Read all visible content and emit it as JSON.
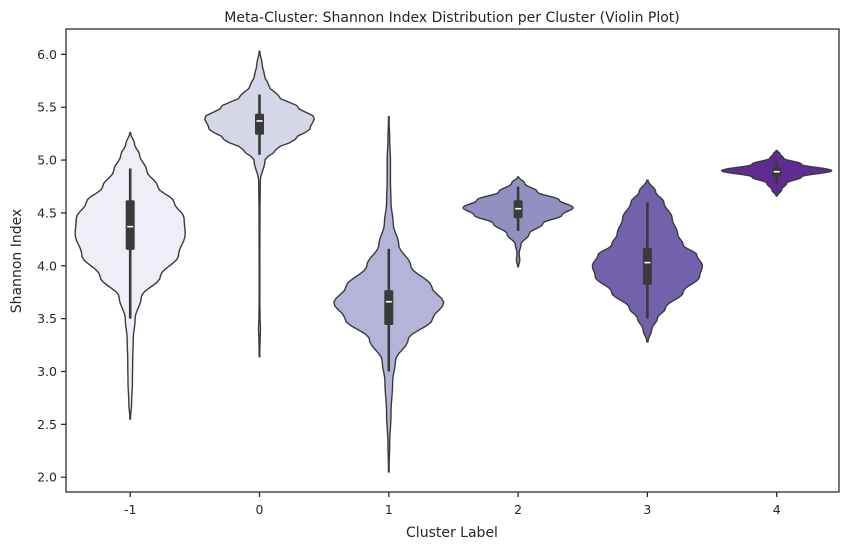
{
  "chart_data": {
    "type": "violin",
    "title": "Meta-Cluster: Shannon Index Distribution per Cluster (Violin Plot)",
    "xlabel": "Cluster Label",
    "ylabel": "Shannon Index",
    "categories": [
      "-1",
      "0",
      "1",
      "2",
      "3",
      "4"
    ],
    "ylim": [
      1.86,
      6.24
    ],
    "yticks": [
      "2.0",
      "2.5",
      "3.0",
      "3.5",
      "4.0",
      "4.5",
      "5.0",
      "5.5",
      "6.0"
    ],
    "grid": false,
    "violins": [
      {
        "category": "-1",
        "color": "#efedf5",
        "min": 2.55,
        "max": 5.26,
        "whisker_low": 3.5,
        "q1": 4.15,
        "median": 4.37,
        "q3": 4.62,
        "whisker_high": 4.92,
        "density": [
          [
            2.55,
            0.005
          ],
          [
            2.7,
            0.025
          ],
          [
            2.9,
            0.04
          ],
          [
            3.1,
            0.045
          ],
          [
            3.3,
            0.055
          ],
          [
            3.5,
            0.09
          ],
          [
            3.7,
            0.2
          ],
          [
            3.9,
            0.55
          ],
          [
            4.1,
            0.88
          ],
          [
            4.3,
            1.0
          ],
          [
            4.45,
            0.98
          ],
          [
            4.6,
            0.8
          ],
          [
            4.75,
            0.5
          ],
          [
            4.9,
            0.3
          ],
          [
            5.05,
            0.17
          ],
          [
            5.15,
            0.08
          ],
          [
            5.26,
            0.005
          ]
        ]
      },
      {
        "category": "0",
        "color": "#d6d6e9",
        "min": 3.14,
        "max": 6.03,
        "whisker_low": 5.05,
        "q1": 5.24,
        "median": 5.37,
        "q3": 5.44,
        "whisker_high": 5.62,
        "density": [
          [
            3.14,
            0.003
          ],
          [
            3.3,
            0.01
          ],
          [
            3.4,
            0.018
          ],
          [
            3.5,
            0.01
          ],
          [
            3.7,
            0.005
          ],
          [
            4.0,
            0.006
          ],
          [
            4.5,
            0.008
          ],
          [
            4.8,
            0.015
          ],
          [
            5.0,
            0.1
          ],
          [
            5.1,
            0.3
          ],
          [
            5.2,
            0.65
          ],
          [
            5.3,
            0.92
          ],
          [
            5.4,
            1.0
          ],
          [
            5.5,
            0.7
          ],
          [
            5.6,
            0.35
          ],
          [
            5.7,
            0.17
          ],
          [
            5.8,
            0.09
          ],
          [
            5.9,
            0.05
          ],
          [
            6.03,
            0.005
          ]
        ]
      },
      {
        "category": "1",
        "color": "#b4b4d8",
        "min": 2.05,
        "max": 5.41,
        "whisker_low": 3.0,
        "q1": 3.44,
        "median": 3.66,
        "q3": 3.77,
        "whisker_high": 4.16,
        "density": [
          [
            2.05,
            0.003
          ],
          [
            2.3,
            0.015
          ],
          [
            2.6,
            0.04
          ],
          [
            2.9,
            0.07
          ],
          [
            3.1,
            0.12
          ],
          [
            3.3,
            0.35
          ],
          [
            3.5,
            0.8
          ],
          [
            3.65,
            1.0
          ],
          [
            3.8,
            0.78
          ],
          [
            4.0,
            0.4
          ],
          [
            4.2,
            0.18
          ],
          [
            4.4,
            0.08
          ],
          [
            4.6,
            0.04
          ],
          [
            4.8,
            0.03
          ],
          [
            5.0,
            0.03
          ],
          [
            5.2,
            0.015
          ],
          [
            5.41,
            0.003
          ]
        ]
      },
      {
        "category": "2",
        "color": "#9290c1",
        "min": 3.99,
        "max": 4.84,
        "whisker_low": 4.33,
        "q1": 4.45,
        "median": 4.54,
        "q3": 4.62,
        "whisker_high": 4.75,
        "density": [
          [
            3.99,
            0.005
          ],
          [
            4.05,
            0.03
          ],
          [
            4.12,
            0.02
          ],
          [
            4.2,
            0.05
          ],
          [
            4.3,
            0.2
          ],
          [
            4.4,
            0.45
          ],
          [
            4.48,
            0.8
          ],
          [
            4.55,
            1.0
          ],
          [
            4.62,
            0.75
          ],
          [
            4.7,
            0.35
          ],
          [
            4.78,
            0.12
          ],
          [
            4.84,
            0.01
          ]
        ]
      },
      {
        "category": "3",
        "color": "#7461ac",
        "min": 3.28,
        "max": 4.81,
        "whisker_low": 3.5,
        "q1": 3.82,
        "median": 4.03,
        "q3": 4.17,
        "whisker_high": 4.6,
        "density": [
          [
            3.28,
            0.01
          ],
          [
            3.4,
            0.08
          ],
          [
            3.5,
            0.18
          ],
          [
            3.6,
            0.33
          ],
          [
            3.75,
            0.65
          ],
          [
            3.9,
            0.95
          ],
          [
            4.0,
            1.0
          ],
          [
            4.1,
            0.9
          ],
          [
            4.2,
            0.65
          ],
          [
            4.3,
            0.55
          ],
          [
            4.45,
            0.45
          ],
          [
            4.6,
            0.3
          ],
          [
            4.7,
            0.15
          ],
          [
            4.81,
            0.01
          ]
        ]
      },
      {
        "category": "4",
        "color": "#5e2c92",
        "min": 4.66,
        "max": 5.09,
        "whisker_low": 4.77,
        "q1": 4.84,
        "median": 4.89,
        "q3": 4.93,
        "whisker_high": 4.99,
        "density": [
          [
            4.66,
            0.01
          ],
          [
            4.72,
            0.09
          ],
          [
            4.78,
            0.18
          ],
          [
            4.84,
            0.45
          ],
          [
            4.9,
            1.0
          ],
          [
            4.96,
            0.45
          ],
          [
            5.02,
            0.12
          ],
          [
            5.06,
            0.06
          ],
          [
            5.09,
            0.01
          ]
        ]
      }
    ]
  }
}
